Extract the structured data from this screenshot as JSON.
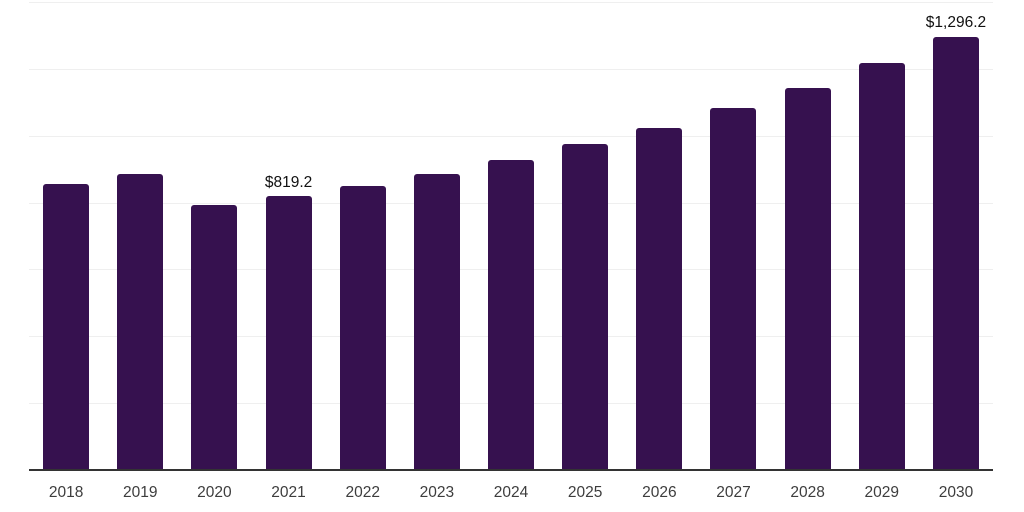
{
  "chart_data": {
    "type": "bar",
    "title": "",
    "xlabel": "",
    "ylabel": "",
    "categories": [
      "2018",
      "2019",
      "2020",
      "2021",
      "2022",
      "2023",
      "2024",
      "2025",
      "2026",
      "2027",
      "2028",
      "2029",
      "2030"
    ],
    "values": [
      856,
      886,
      792,
      819.2,
      849,
      886,
      927,
      975,
      1022,
      1082,
      1144,
      1217,
      1296.2
    ],
    "value_labels": [
      "",
      "",
      "",
      "$819.2",
      "",
      "",
      "",
      "",
      "",
      "",
      "",
      "",
      "$1,296.2"
    ],
    "ylim": [
      0,
      1400
    ],
    "gridline_step": 200,
    "grid": "horizontal",
    "legend": "none",
    "colors": {
      "bar": "#36114F",
      "gridline": "#EFEFEF",
      "axis_line": "#333333",
      "tick_label": "#3D3D3D",
      "value_label": "#111111",
      "background": "#FFFFFF"
    }
  }
}
